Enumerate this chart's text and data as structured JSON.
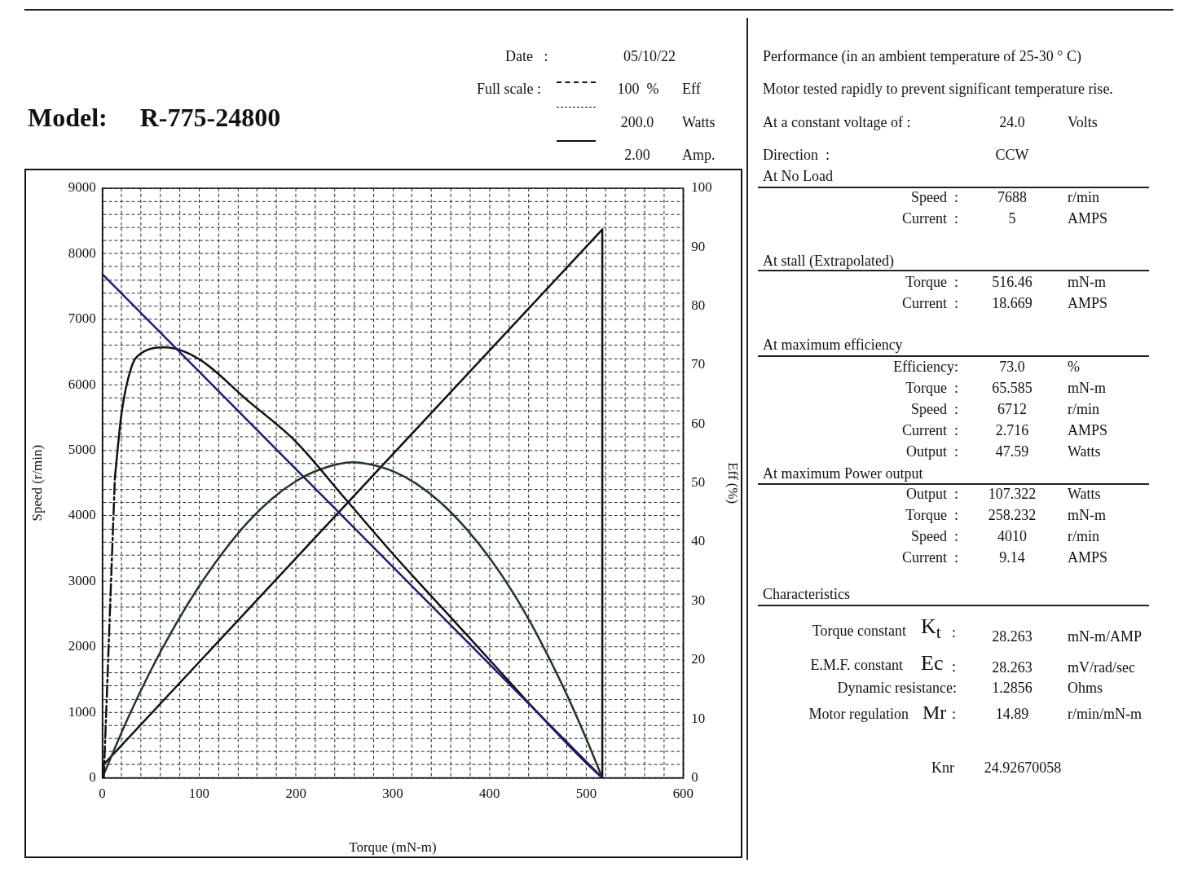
{
  "chart_data": {
    "type": "line",
    "title": "Model:     R-775-24800",
    "xlabel": "Torque (mN-m)",
    "ylabel": "Speed (r/min)",
    "y2label": "Eff (%)",
    "xlim": [
      0,
      600
    ],
    "xticks": [
      0,
      {
        "value": 20,
        "label": null
      },
      {
        "value": 40,
        "label": null
      },
      {
        "value": 60,
        "label": null
      },
      {
        "value": 80,
        "label": null
      },
      100,
      {
        "value": 120,
        "label": null
      },
      {
        "value": 140,
        "label": null
      },
      {
        "value": 160,
        "label": null
      },
      {
        "value": 180,
        "label": null
      },
      200,
      {
        "value": 220,
        "label": null
      },
      {
        "value": 240,
        "label": null
      },
      {
        "value": 260,
        "label": null
      },
      {
        "value": 280,
        "label": null
      },
      300,
      {
        "value": 320,
        "label": null
      },
      {
        "value": 340,
        "label": null
      },
      {
        "value": 360,
        "label": null
      },
      {
        "value": 380,
        "label": null
      },
      400,
      {
        "value": 420,
        "label": null
      },
      {
        "value": 440,
        "label": null
      },
      {
        "value": 460,
        "label": null
      },
      {
        "value": 480,
        "label": null
      },
      500,
      {
        "value": 520,
        "label": null
      },
      {
        "value": 540,
        "label": null
      },
      {
        "value": 560,
        "label": null
      },
      {
        "value": 580,
        "label": null
      },
      600
    ],
    "ylim": [
      0,
      9000
    ],
    "yticks": [
      0,
      {
        "value": 200,
        "label": null
      },
      {
        "value": 400,
        "label": null
      },
      {
        "value": 600,
        "label": null
      },
      {
        "value": 800,
        "label": null
      },
      1000,
      {
        "value": 1200,
        "label": null
      },
      {
        "value": 1400,
        "label": null
      },
      {
        "value": 1600,
        "label": null
      },
      {
        "value": 1800,
        "label": null
      },
      2000,
      {
        "value": 2200,
        "label": null
      },
      {
        "value": 2400,
        "label": null
      },
      {
        "value": 2600,
        "label": null
      },
      {
        "value": 2800,
        "label": null
      },
      3000,
      {
        "value": 3200,
        "label": null
      },
      {
        "value": 3400,
        "label": null
      },
      {
        "value": 3600,
        "label": null
      },
      {
        "value": 3800,
        "label": null
      },
      4000,
      {
        "value": 4200,
        "label": null
      },
      {
        "value": 4400,
        "label": null
      },
      {
        "value": 4600,
        "label": null
      },
      {
        "value": 4800,
        "label": null
      },
      5000,
      {
        "value": 5200,
        "label": null
      },
      {
        "value": 5400,
        "label": null
      },
      {
        "value": 5600,
        "label": null
      },
      {
        "value": 5800,
        "label": null
      },
      6000,
      {
        "value": 6200,
        "label": null
      },
      {
        "value": 6400,
        "label": null
      },
      {
        "value": 6600,
        "label": null
      },
      {
        "value": 6800,
        "label": null
      },
      7000,
      {
        "value": 7200,
        "label": null
      },
      {
        "value": 7400,
        "label": null
      },
      {
        "value": 7600,
        "label": null
      },
      {
        "value": 7800,
        "label": null
      },
      8000,
      {
        "value": 8200,
        "label": null
      },
      {
        "value": 8400,
        "label": null
      },
      {
        "value": 8600,
        "label": null
      },
      {
        "value": 8800,
        "label": null
      },
      9000
    ],
    "y2lim": [
      0,
      100
    ],
    "y2ticks": [
      0,
      10,
      20,
      30,
      40,
      50,
      60,
      70,
      80,
      90,
      100
    ],
    "grid": true,
    "legend": false,
    "series": [
      {
        "color": "#1c1c7a",
        "axis": "y",
        "x": [
          0,
          516.46
        ],
        "values": [
          7688,
          0
        ]
      },
      {
        "color": "#111111",
        "axis": "y2",
        "x": [
          13,
          20,
          30,
          40,
          65,
          100,
          150,
          200,
          250,
          300,
          350,
          400,
          450,
          500,
          516.46
        ],
        "values": [
          51,
          62,
          69.6,
          72,
          73,
          71,
          64,
          57,
          47.5,
          38,
          29,
          20,
          11,
          2.5,
          0
        ]
      },
      {
        "color": "#111111",
        "axis": "y2",
        "line_style": "dashed",
        "x": [
          1.5,
          13
        ],
        "values": [
          0,
          51
        ]
      },
      {
        "color": "#1e3b1e",
        "axis": "y2",
        "x": [
          0,
          25,
          50,
          75,
          100,
          125,
          150,
          175,
          200,
          225,
          258.23,
          275,
          300,
          325,
          350,
          375,
          400,
          425,
          450,
          475,
          500,
          516.46
        ],
        "values": [
          0,
          9.6,
          18.2,
          25.8,
          32.5,
          38.3,
          43.3,
          47.3,
          50.3,
          52.3,
          53.5,
          53.2,
          52.0,
          49.8,
          46.6,
          42.4,
          37.3,
          31.2,
          24.0,
          15.8,
          6.6,
          0
        ]
      },
      {
        "color": "#111111",
        "axis": "y2",
        "x": [
          0,
          516.46,
          516.46
        ],
        "values": [
          2,
          93,
          0
        ]
      }
    ],
    "annotations": [
      "Date   :",
      "05/10/22",
      "Full scale :",
      "100  %",
      "Eff",
      "200.0",
      "Watts",
      "2.00",
      "Amp.",
      "Performance (in an ambient temperature of 25-30 ° C)",
      "Motor tested rapidly to prevent significant temperature rise.",
      "At a constant voltage of :",
      "24.0",
      "Volts",
      "Direction  :",
      "CCW",
      "At No Load",
      "Speed  :",
      "7688",
      "r/min",
      "Current  :",
      "5",
      "AMPS",
      "At stall (Extrapolated)",
      "Torque  :",
      "516.46",
      "mN-m",
      "Current  :",
      "18.669",
      "AMPS",
      "At maximum efficiency",
      "Efficiency:",
      "73.0",
      "%",
      "Torque  :",
      "65.585",
      "mN-m",
      "Speed  :",
      "6712",
      "r/min",
      "Current  :",
      "2.716",
      "AMPS",
      "Output  :",
      "47.59",
      "Watts",
      "At maximum Power output",
      "Output  :",
      "107.322",
      "Watts",
      "Torque  :",
      "258.232",
      "mN-m",
      "Speed  :",
      "4010",
      "r/min",
      "Current  :",
      "9.14",
      "AMPS",
      "Characteristics",
      "Torque constant",
      "K$_{t}$",
      ":",
      "28.263",
      "mN-m/AMP",
      "E.M.F. constant",
      "Ec",
      ":",
      "28.263",
      "mV/rad/sec",
      "Dynamic resistance:",
      "1.2856",
      "Ohms",
      "Motor regulation",
      "Mr",
      ":",
      "14.89",
      "r/min/mN-m",
      "Knr",
      "24.92670058"
    ]
  }
}
